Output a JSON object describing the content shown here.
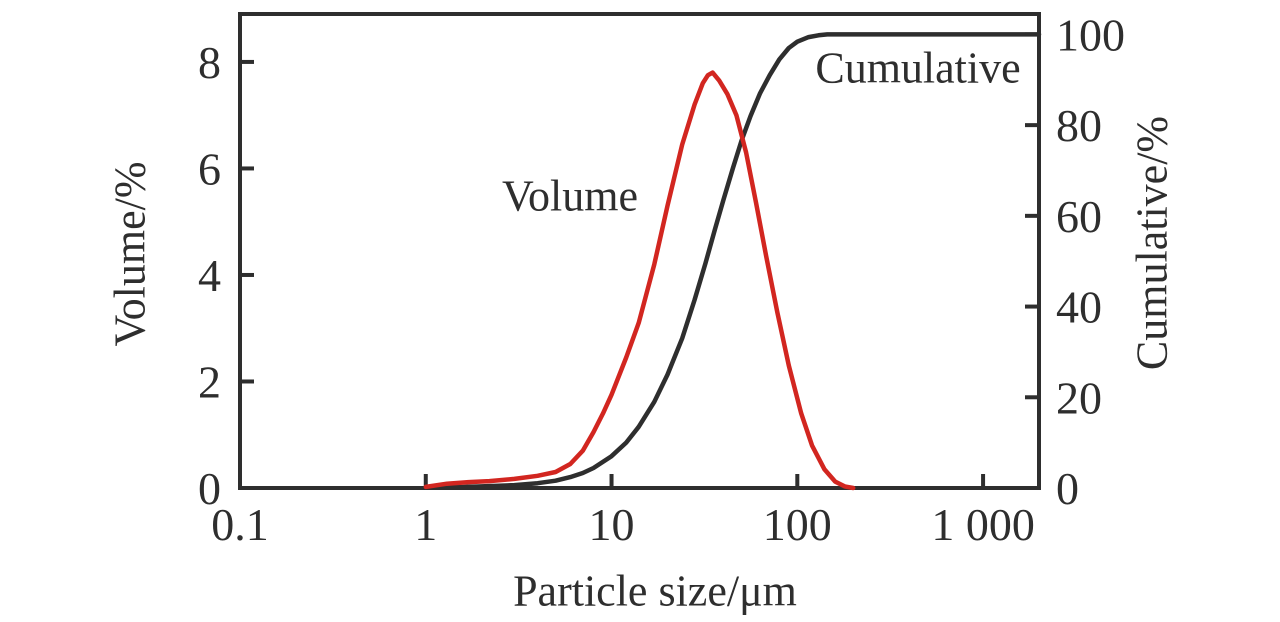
{
  "chart_data": {
    "type": "line",
    "title": "",
    "x_axis": {
      "label": "Particle size/μm",
      "scale": "log",
      "min": 0.1,
      "max": 2000,
      "ticks": [
        {
          "v": 0.1,
          "label": "0.1"
        },
        {
          "v": 1,
          "label": "1"
        },
        {
          "v": 10,
          "label": "10"
        },
        {
          "v": 100,
          "label": "100"
        },
        {
          "v": 1000,
          "label": "1 000"
        }
      ]
    },
    "y_left": {
      "label": "Volume/%",
      "min": 0,
      "max": 8.9,
      "ticks": [
        {
          "v": 0,
          "label": "0"
        },
        {
          "v": 2,
          "label": "2"
        },
        {
          "v": 4,
          "label": "4"
        },
        {
          "v": 6,
          "label": "6"
        },
        {
          "v": 8,
          "label": "8"
        }
      ]
    },
    "y_right": {
      "label": "Cumulative/%",
      "min": 0,
      "max": 104.5,
      "ticks": [
        {
          "v": 0,
          "label": "0"
        },
        {
          "v": 20,
          "label": "20"
        },
        {
          "v": 40,
          "label": "40"
        },
        {
          "v": 60,
          "label": "60"
        },
        {
          "v": 80,
          "label": "80"
        },
        {
          "v": 100,
          "label": "100"
        }
      ]
    },
    "grid": false,
    "legend_position": "none",
    "annotations": [
      {
        "text": "Volume",
        "series": "volume"
      },
      {
        "text": "Cumulative",
        "series": "cumulative"
      }
    ],
    "colors": {
      "volume": "#d22620",
      "cumulative": "#2e2e2e",
      "axis": "#2e2e2e",
      "background": "#ffffff"
    },
    "series": [
      {
        "name": "Cumulative",
        "axis": "right",
        "color_key": "cumulative",
        "points": [
          [
            1,
            0.1
          ],
          [
            1.5,
            0.2
          ],
          [
            2,
            0.35
          ],
          [
            3,
            0.65
          ],
          [
            4,
            1.05
          ],
          [
            5,
            1.6
          ],
          [
            6,
            2.4
          ],
          [
            7,
            3.3
          ],
          [
            8,
            4.4
          ],
          [
            10,
            7
          ],
          [
            12,
            10
          ],
          [
            14,
            13.5
          ],
          [
            17,
            19
          ],
          [
            20,
            25
          ],
          [
            24,
            33
          ],
          [
            28,
            41.5
          ],
          [
            32,
            49.5
          ],
          [
            36,
            57
          ],
          [
            40,
            63.5
          ],
          [
            45,
            70.5
          ],
          [
            50,
            76.5
          ],
          [
            56,
            82
          ],
          [
            63,
            87
          ],
          [
            71,
            91
          ],
          [
            80,
            94.5
          ],
          [
            90,
            97
          ],
          [
            100,
            98.4
          ],
          [
            115,
            99.4
          ],
          [
            130,
            99.8
          ],
          [
            145,
            100
          ],
          [
            2000,
            100
          ]
        ]
      },
      {
        "name": "Volume",
        "axis": "left",
        "color_key": "volume",
        "points": [
          [
            1,
            0.02
          ],
          [
            1.3,
            0.08
          ],
          [
            1.7,
            0.11
          ],
          [
            2.2,
            0.13
          ],
          [
            3,
            0.17
          ],
          [
            4,
            0.23
          ],
          [
            5,
            0.3
          ],
          [
            6,
            0.45
          ],
          [
            7,
            0.7
          ],
          [
            8,
            1.05
          ],
          [
            9,
            1.4
          ],
          [
            10,
            1.75
          ],
          [
            12,
            2.45
          ],
          [
            14,
            3.1
          ],
          [
            17,
            4.2
          ],
          [
            20,
            5.3
          ],
          [
            24,
            6.45
          ],
          [
            28,
            7.2
          ],
          [
            31,
            7.6
          ],
          [
            33,
            7.75
          ],
          [
            35,
            7.8
          ],
          [
            38,
            7.65
          ],
          [
            42,
            7.4
          ],
          [
            47,
            7.0
          ],
          [
            53,
            6.3
          ],
          [
            60,
            5.35
          ],
          [
            68,
            4.35
          ],
          [
            78,
            3.3
          ],
          [
            90,
            2.3
          ],
          [
            105,
            1.4
          ],
          [
            120,
            0.8
          ],
          [
            140,
            0.35
          ],
          [
            160,
            0.12
          ],
          [
            180,
            0.03
          ],
          [
            200,
            0
          ]
        ]
      }
    ]
  }
}
